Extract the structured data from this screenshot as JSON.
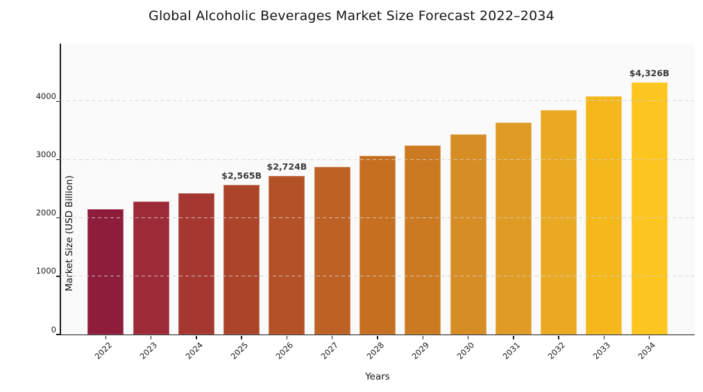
{
  "chart_data": {
    "type": "bar",
    "title": "Global Alcoholic Beverages Market Size Forecast 2022–2034",
    "xlabel": "Years",
    "ylabel": "Market Size (USD Billion)",
    "categories": [
      "2022",
      "2023",
      "2024",
      "2025",
      "2026",
      "2027",
      "2028",
      "2029",
      "2030",
      "2031",
      "2032",
      "2033",
      "2034"
    ],
    "values": [
      2150,
      2280,
      2420,
      2565,
      2724,
      2880,
      3060,
      3240,
      3430,
      3640,
      3855,
      4085,
      4326
    ],
    "bar_colors": [
      "#8E1C3B",
      "#9D2A37",
      "#A53730",
      "#AC442A",
      "#B45127",
      "#BE6125",
      "#C76F21",
      "#CC7A21",
      "#D68D23",
      "#DF9B23",
      "#E9A922",
      "#F4B81D",
      "#FDC51F"
    ],
    "annotations": [
      {
        "year": "2025",
        "label": "$2,565B"
      },
      {
        "year": "2026",
        "label": "$2,724B"
      },
      {
        "year": "2034",
        "label": "$4,326B"
      }
    ],
    "yticks": [
      0,
      1000,
      2000,
      3000,
      4000
    ],
    "ylim": [
      0,
      4990
    ],
    "grid": "horizontal-dashed",
    "legend": "none",
    "colors": {
      "figure_bg": "#ffffff",
      "plot_bg": "#fafafa",
      "gridline": "#d2d2d2",
      "spine": "#1a1a1a",
      "annotation_text": "#3a3a3a",
      "title_text": "#141414"
    }
  }
}
